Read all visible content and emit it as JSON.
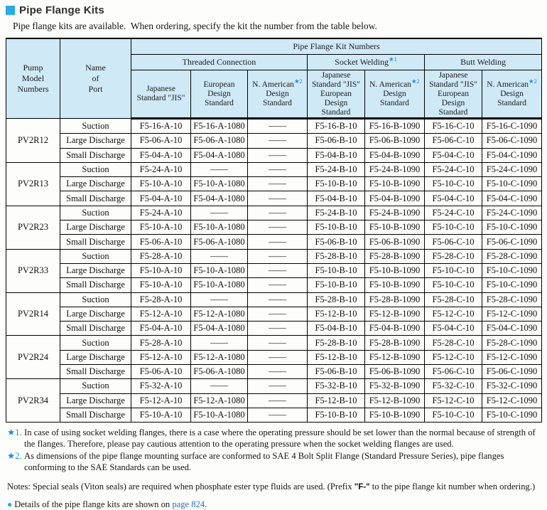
{
  "page": {
    "title": "Pipe Flange Kits",
    "subtitle": "Pipe flange kits are available.  When ordering, specify the kit the number from the table below."
  },
  "colors": {
    "header_bg": "#cfe9f7",
    "accent_square": "#29abe2",
    "star_blue": "#1e88e5",
    "link_blue": "#2a6fc0"
  },
  "table": {
    "pump_header": "Pump\nModel\nNumbers",
    "port_header": "Name\nof\nPort",
    "kit_numbers_header": "Pipe Flange Kit Numbers",
    "connection_headers": [
      {
        "label": "Threaded Connection",
        "star": ""
      },
      {
        "label": "Socket Welding",
        "star": "★1"
      },
      {
        "label": "Butt Welding",
        "star": ""
      }
    ],
    "sub_headers": [
      {
        "line1": "Japanese",
        "star": "",
        "rest": "Standard \"JIS\""
      },
      {
        "line1": "European",
        "star": "",
        "rest": "Design\nStandard"
      },
      {
        "line1": "N. American",
        "star": "★2",
        "rest": "Design\nStandard"
      },
      {
        "line1": "Japanese",
        "star": "",
        "rest": "Standard \"JIS\"\nEuropean\nDesign\nStandard"
      },
      {
        "line1": "N. American",
        "star": "★2",
        "rest": "Design\nStandard"
      },
      {
        "line1": "Japanese",
        "star": "",
        "rest": "Standard \"JIS\"\nEuropean\nDesign\nStandard"
      },
      {
        "line1": "N. American",
        "star": "★2",
        "rest": "Design\nStandard"
      }
    ],
    "groups": [
      {
        "model": "PV2R12",
        "rows": [
          {
            "port": "Suction",
            "values": [
              "F5-16-A-10",
              "F5-16-A-1080",
              "——",
              "F5-16-B-10",
              "F5-16-B-1090",
              "F5-16-C-10",
              "F5-16-C-1090"
            ]
          },
          {
            "port": "Large Discharge",
            "values": [
              "F5-06-A-10",
              "F5-06-A-1080",
              "——",
              "F5-06-B-10",
              "F5-06-B-1090",
              "F5-06-C-10",
              "F5-06-C-1090"
            ]
          },
          {
            "port": "Small Discharge",
            "values": [
              "F5-04-A-10",
              "F5-04-A-1080",
              "——",
              "F5-04-B-10",
              "F5-04-B-1090",
              "F5-04-C-10",
              "F5-04-C-1090"
            ]
          }
        ]
      },
      {
        "model": "PV2R13",
        "rows": [
          {
            "port": "Suction",
            "values": [
              "F5-24-A-10",
              "——",
              "——",
              "F5-24-B-10",
              "F5-24-B-1090",
              "F5-24-C-10",
              "F5-24-C-1090"
            ]
          },
          {
            "port": "Large Discharge",
            "values": [
              "F5-10-A-10",
              "F5-10-A-1080",
              "——",
              "F5-10-B-10",
              "F5-10-B-1090",
              "F5-10-C-10",
              "F5-10-C-1090"
            ]
          },
          {
            "port": "Small Discharge",
            "values": [
              "F5-04-A-10",
              "F5-04-A-1080",
              "——",
              "F5-04-B-10",
              "F5-04-B-1090",
              "F5-04-C-10",
              "F5-04-C-1090"
            ]
          }
        ]
      },
      {
        "model": "PV2R23",
        "rows": [
          {
            "port": "Suction",
            "values": [
              "F5-24-A-10",
              "——",
              "——",
              "F5-24-B-10",
              "F5-24-B-1090",
              "F5-24-C-10",
              "F5-24-C-1090"
            ]
          },
          {
            "port": "Large Discharge",
            "values": [
              "F5-10-A-10",
              "F5-10-A-1080",
              "——",
              "F5-10-B-10",
              "F5-10-B-1090",
              "F5-10-C-10",
              "F5-10-C-1090"
            ]
          },
          {
            "port": "Small Discharge",
            "values": [
              "F5-06-A-10",
              "F5-06-A-1080",
              "——",
              "F5-06-B-10",
              "F5-06-B-1090",
              "F5-06-C-10",
              "F5-06-C-1090"
            ]
          }
        ]
      },
      {
        "model": "PV2R33",
        "rows": [
          {
            "port": "Suction",
            "values": [
              "F5-28-A-10",
              "——",
              "——",
              "F5-28-B-10",
              "F5-28-B-1090",
              "F5-28-C-10",
              "F5-28-C-1090"
            ]
          },
          {
            "port": "Large Discharge",
            "values": [
              "F5-10-A-10",
              "F5-10-A-1080",
              "——",
              "F5-10-B-10",
              "F5-10-B-1090",
              "F5-10-C-10",
              "F5-10-C-1090"
            ]
          },
          {
            "port": "Small Discharge",
            "values": [
              "F5-10-A-10",
              "F5-10-A-1080",
              "——",
              "F5-10-B-10",
              "F5-10-B-1090",
              "F5-10-C-10",
              "F5-10-C-1090"
            ]
          }
        ]
      },
      {
        "model": "PV2R14",
        "rows": [
          {
            "port": "Suction",
            "values": [
              "F5-28-A-10",
              "——",
              "——",
              "F5-28-B-10",
              "F5-28-B-1090",
              "F5-28-C-10",
              "F5-28-C-1090"
            ]
          },
          {
            "port": "Large Discharge",
            "values": [
              "F5-12-A-10",
              "F5-12-A-1080",
              "——",
              "F5-12-B-10",
              "F5-12-B-1090",
              "F5-12-C-10",
              "F5-12-C-1090"
            ]
          },
          {
            "port": "Small Discharge",
            "values": [
              "F5-04-A-10",
              "F5-04-A-1080",
              "——",
              "F5-04-B-10",
              "F5-04-B-1090",
              "F5-04-C-10",
              "F5-04-C-1090"
            ]
          }
        ]
      },
      {
        "model": "PV2R24",
        "rows": [
          {
            "port": "Suction",
            "values": [
              "F5-28-A-10",
              "——",
              "——",
              "F5-28-B-10",
              "F5-28-B-1090",
              "F5-28-C-10",
              "F5-28-C-1090"
            ]
          },
          {
            "port": "Large Discharge",
            "values": [
              "F5-12-A-10",
              "F5-12-A-1080",
              "——",
              "F5-12-B-10",
              "F5-12-B-1090",
              "F5-12-C-10",
              "F5-12-C-1090"
            ]
          },
          {
            "port": "Small Discharge",
            "values": [
              "F5-06-A-10",
              "F5-06-A-1080",
              "——",
              "F5-06-B-10",
              "F5-06-B-1090",
              "F5-06-C-10",
              "F5-06-C-1090"
            ]
          }
        ]
      },
      {
        "model": "PV2R34",
        "rows": [
          {
            "port": "Suction",
            "values": [
              "F5-32-A-10",
              "——",
              "——",
              "F5-32-B-10",
              "F5-32-B-1090",
              "F5-32-C-10",
              "F5-32-C-1090"
            ]
          },
          {
            "port": "Large Discharge",
            "values": [
              "F5-12-A-10",
              "F5-12-A-1080",
              "——",
              "F5-12-B-10",
              "F5-12-B-1090",
              "F5-12-C-10",
              "F5-12-C-1090"
            ]
          },
          {
            "port": "Small Discharge",
            "values": [
              "F5-10-A-10",
              "F5-10-A-1080",
              "——",
              "F5-10-B-10",
              "F5-10-B-1090",
              "F5-10-C-10",
              "F5-10-C-1090"
            ]
          }
        ]
      }
    ]
  },
  "footnotes": [
    {
      "marker": "★1.",
      "text": "In case of using socket welding flanges, there is a case where the operating pressure should be set lower than the normal because of strength of the flanges. Therefore, please pay cautious attention to the operating pressure when the socket welding flanges are used."
    },
    {
      "marker": "★2.",
      "text": "As dimensions of the pipe flange mounting surface are conformed to SAE 4 Bolt Split Flange (Standard Pressure Series), pipe flanges conforming to the SAE Standards can be used."
    }
  ],
  "notes": {
    "before": "Notes: Special seals (Viton seals) are required when phosphate ester type fluids are used. (Prefix ",
    "bold": "\"F-\"",
    "after": " to the pipe flange kit number when ordering.)"
  },
  "details": {
    "bullet": "●",
    "before": "Details of the pipe flange kits are shown on ",
    "link": "page 824",
    "after": "."
  }
}
